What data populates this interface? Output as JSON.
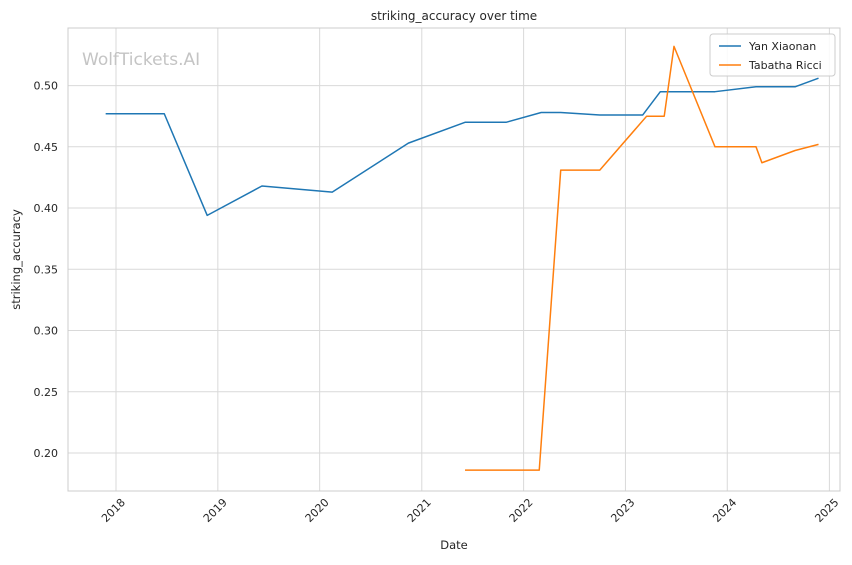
{
  "chart_data": {
    "type": "line",
    "title": "striking_accuracy over time",
    "xlabel": "Date",
    "ylabel": "striking_accuracy",
    "watermark": "WolfTickets.AI",
    "x_ticks": [
      "2018",
      "2019",
      "2020",
      "2021",
      "2022",
      "2023",
      "2024",
      "2025"
    ],
    "y_ticks": [
      "0.20",
      "0.25",
      "0.30",
      "0.35",
      "0.40",
      "0.45",
      "0.50"
    ],
    "xlim": [
      "2017-07-13",
      "2025-02-08"
    ],
    "ylim": [
      0.169,
      0.547
    ],
    "grid": true,
    "legend_position": "top-right",
    "series": [
      {
        "name": "Yan Xiaonan",
        "color": "#1f77b4",
        "points": [
          [
            "2017-11-25",
            0.477
          ],
          [
            "2018-06-23",
            0.477
          ],
          [
            "2018-11-24",
            0.394
          ],
          [
            "2019-06-08",
            0.418
          ],
          [
            "2020-02-15",
            0.413
          ],
          [
            "2020-11-14",
            0.453
          ],
          [
            "2021-06-05",
            0.47
          ],
          [
            "2021-10-30",
            0.47
          ],
          [
            "2022-03-05",
            0.478
          ],
          [
            "2022-05-14",
            0.478
          ],
          [
            "2022-10-01",
            0.476
          ],
          [
            "2023-03-04",
            0.476
          ],
          [
            "2023-05-06",
            0.495
          ],
          [
            "2023-11-18",
            0.495
          ],
          [
            "2024-04-13",
            0.499
          ],
          [
            "2024-08-31",
            0.499
          ],
          [
            "2024-11-23",
            0.506
          ]
        ]
      },
      {
        "name": "Tabatha Ricci",
        "color": "#ff7f0e",
        "points": [
          [
            "2021-06-05",
            0.186
          ],
          [
            "2022-02-26",
            0.186
          ],
          [
            "2022-05-14",
            0.431
          ],
          [
            "2022-10-01",
            0.431
          ],
          [
            "2023-03-18",
            0.475
          ],
          [
            "2023-05-20",
            0.475
          ],
          [
            "2023-06-24",
            0.532
          ],
          [
            "2023-11-18",
            0.45
          ],
          [
            "2024-04-13",
            0.45
          ],
          [
            "2024-05-04",
            0.437
          ],
          [
            "2024-08-31",
            0.447
          ],
          [
            "2024-11-23",
            0.452
          ]
        ]
      }
    ]
  }
}
